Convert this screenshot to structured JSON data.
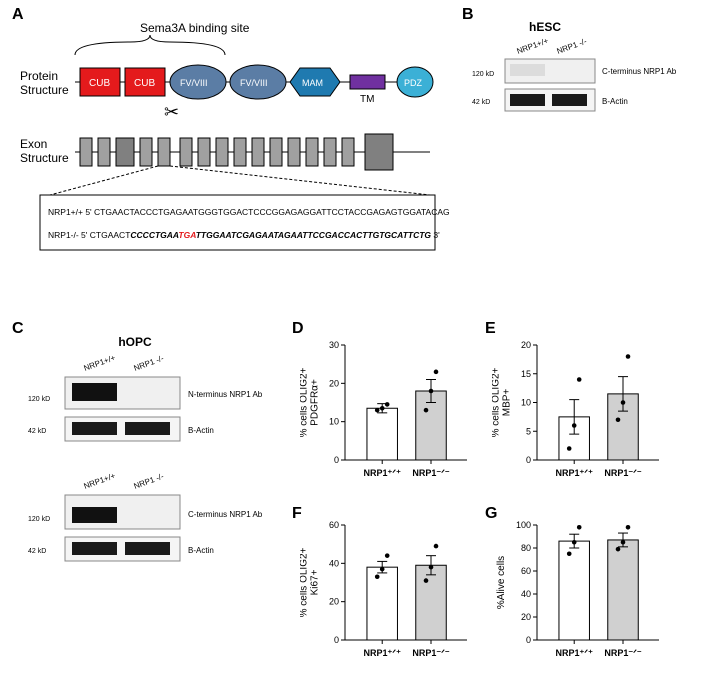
{
  "panels": {
    "A": "A",
    "B": "B",
    "C": "C",
    "D": "D",
    "E": "E",
    "F": "F",
    "G": "G"
  },
  "A": {
    "binding_site": "Sema3A binding site",
    "protein_structure_label": "Protein\nStructure",
    "exon_structure_label": "Exon\nStructure",
    "domains": {
      "CUB": "CUB",
      "FV": "FV/VIII",
      "MAM": "MAM",
      "TM": "TM",
      "PDZ": "PDZ"
    },
    "colors": {
      "CUB": "#e41a1c",
      "FV": "#5b7da5",
      "MAM": "#1f7ab0",
      "TM": "#7030a0",
      "PDZ": "#3bb0d6",
      "exon": "#a0a0a0",
      "line": "#000"
    },
    "seq1_prefix": "NRP1+/+ 5' ",
    "seq1": "CTGAACTACCCTGAGAATGGGTGGACTCCCGGAGAGGATTCCTACCGAGAGTGGATACAG 3'",
    "seq2_prefix": "NRP1-/- 5' ",
    "seq2a": "CTGAACT",
    "seq2b": "CCCCTGAA",
    "seq2_stop": "TGA",
    "seq2c": "TTGGAATCGAGAATAGAATTCCGACCACTTGTGCATTCTG",
    "seq2_end": " 3'"
  },
  "B": {
    "title": "hESC",
    "lane1": "NRP1+/+",
    "lane2": "NRP1 -/-",
    "mw1": "120 kD",
    "mw2": "42 kD",
    "ab1": "C-terminus NRP1 Ab",
    "ab2": "B-Actin"
  },
  "C": {
    "title": "hOPC",
    "lane1": "NRP1+/+",
    "lane2": "NRP1 -/-",
    "mw1": "120 kD",
    "mw2": "42 kD",
    "ab_n": "N-terminus NRP1 Ab",
    "ab_c": "C-terminus NRP1 Ab",
    "ab_actin": "B-Actin"
  },
  "charts": {
    "common": {
      "bar_colors": [
        "#ffffff",
        "#d0d0d0"
      ],
      "x_labels": [
        "NRP1+/+",
        "NRP1-/-"
      ]
    },
    "D": {
      "ylabel": "% cells OLIG2+\nPDGFRα+",
      "ylim": [
        0,
        30
      ],
      "ystep": 10,
      "bars": [
        {
          "mean": 13.5,
          "err": 1.2,
          "pts": [
            13,
            13.5,
            14.5
          ]
        },
        {
          "mean": 18,
          "err": 3,
          "pts": [
            13,
            18,
            23
          ]
        }
      ]
    },
    "E": {
      "ylabel": "% cells OLIG2+\nMBP+",
      "ylim": [
        0,
        20
      ],
      "ystep": 5,
      "bars": [
        {
          "mean": 7.5,
          "err": 3,
          "pts": [
            2,
            6,
            14
          ]
        },
        {
          "mean": 11.5,
          "err": 3,
          "pts": [
            7,
            10,
            18
          ]
        }
      ]
    },
    "F": {
      "ylabel": "% cells OLIG2+\nKi67+",
      "ylim": [
        0,
        60
      ],
      "ystep": 20,
      "bars": [
        {
          "mean": 38,
          "err": 3,
          "pts": [
            33,
            37,
            44
          ]
        },
        {
          "mean": 39,
          "err": 5,
          "pts": [
            31,
            38,
            49
          ]
        }
      ]
    },
    "G": {
      "ylabel": "%Alive cells",
      "ylim": [
        0,
        100
      ],
      "ystep": 20,
      "bars": [
        {
          "mean": 86,
          "err": 6,
          "pts": [
            75,
            85,
            98
          ]
        },
        {
          "mean": 87,
          "err": 6,
          "pts": [
            79,
            85,
            98
          ]
        }
      ]
    }
  }
}
